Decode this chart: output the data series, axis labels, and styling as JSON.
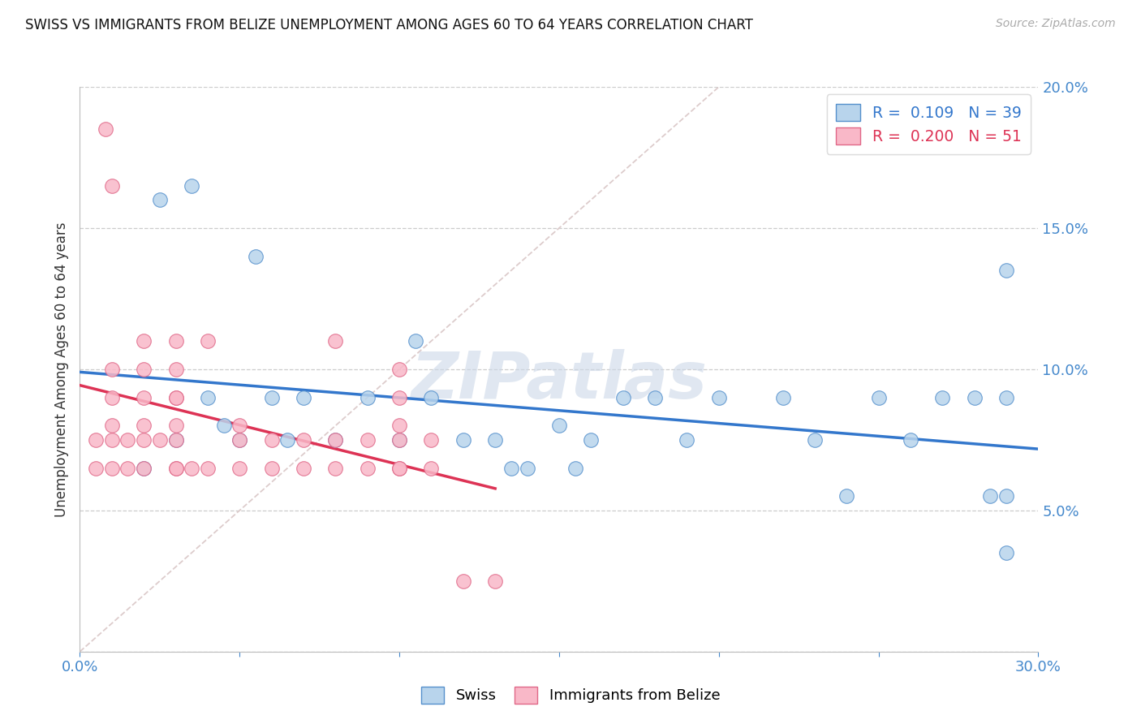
{
  "title": "SWISS VS IMMIGRANTS FROM BELIZE UNEMPLOYMENT AMONG AGES 60 TO 64 YEARS CORRELATION CHART",
  "source": "Source: ZipAtlas.com",
  "ylabel": "Unemployment Among Ages 60 to 64 years",
  "xlim": [
    0.0,
    0.3
  ],
  "ylim": [
    0.0,
    0.2
  ],
  "yticks": [
    0.0,
    0.05,
    0.1,
    0.15,
    0.2
  ],
  "ytick_labels": [
    "",
    "5.0%",
    "10.0%",
    "15.0%",
    "20.0%"
  ],
  "blue_R": 0.109,
  "blue_N": 39,
  "pink_R": 0.2,
  "pink_N": 51,
  "blue_face": "#b8d4ec",
  "pink_face": "#f9b8c8",
  "blue_edge": "#5590cc",
  "pink_edge": "#e06888",
  "blue_trend": "#3377cc",
  "pink_trend": "#dd3355",
  "ref_color": "#cccccc",
  "watermark_color": "#ccd8e8",
  "swiss_x": [
    0.02,
    0.025,
    0.03,
    0.035,
    0.04,
    0.045,
    0.05,
    0.055,
    0.06,
    0.065,
    0.07,
    0.08,
    0.09,
    0.1,
    0.105,
    0.11,
    0.12,
    0.13,
    0.135,
    0.14,
    0.15,
    0.155,
    0.16,
    0.17,
    0.18,
    0.19,
    0.2,
    0.22,
    0.23,
    0.24,
    0.25,
    0.26,
    0.27,
    0.28,
    0.285,
    0.29,
    0.29,
    0.29,
    0.29
  ],
  "swiss_y": [
    0.065,
    0.16,
    0.075,
    0.165,
    0.09,
    0.08,
    0.075,
    0.14,
    0.09,
    0.075,
    0.09,
    0.075,
    0.09,
    0.075,
    0.11,
    0.09,
    0.075,
    0.075,
    0.065,
    0.065,
    0.08,
    0.065,
    0.075,
    0.09,
    0.09,
    0.075,
    0.09,
    0.09,
    0.075,
    0.055,
    0.09,
    0.075,
    0.09,
    0.09,
    0.055,
    0.09,
    0.135,
    0.055,
    0.035
  ],
  "belize_x": [
    0.005,
    0.005,
    0.008,
    0.01,
    0.01,
    0.01,
    0.01,
    0.01,
    0.01,
    0.015,
    0.015,
    0.02,
    0.02,
    0.02,
    0.02,
    0.02,
    0.02,
    0.025,
    0.03,
    0.03,
    0.03,
    0.03,
    0.03,
    0.03,
    0.03,
    0.03,
    0.035,
    0.04,
    0.04,
    0.05,
    0.05,
    0.05,
    0.06,
    0.06,
    0.07,
    0.07,
    0.08,
    0.08,
    0.08,
    0.09,
    0.09,
    0.1,
    0.1,
    0.1,
    0.1,
    0.1,
    0.1,
    0.11,
    0.11,
    0.12,
    0.13
  ],
  "belize_y": [
    0.065,
    0.075,
    0.185,
    0.065,
    0.075,
    0.08,
    0.09,
    0.1,
    0.165,
    0.065,
    0.075,
    0.065,
    0.075,
    0.08,
    0.09,
    0.1,
    0.11,
    0.075,
    0.065,
    0.065,
    0.075,
    0.08,
    0.09,
    0.1,
    0.11,
    0.09,
    0.065,
    0.065,
    0.11,
    0.065,
    0.075,
    0.08,
    0.065,
    0.075,
    0.065,
    0.075,
    0.065,
    0.075,
    0.11,
    0.065,
    0.075,
    0.065,
    0.065,
    0.075,
    0.08,
    0.09,
    0.1,
    0.065,
    0.075,
    0.025,
    0.025
  ]
}
